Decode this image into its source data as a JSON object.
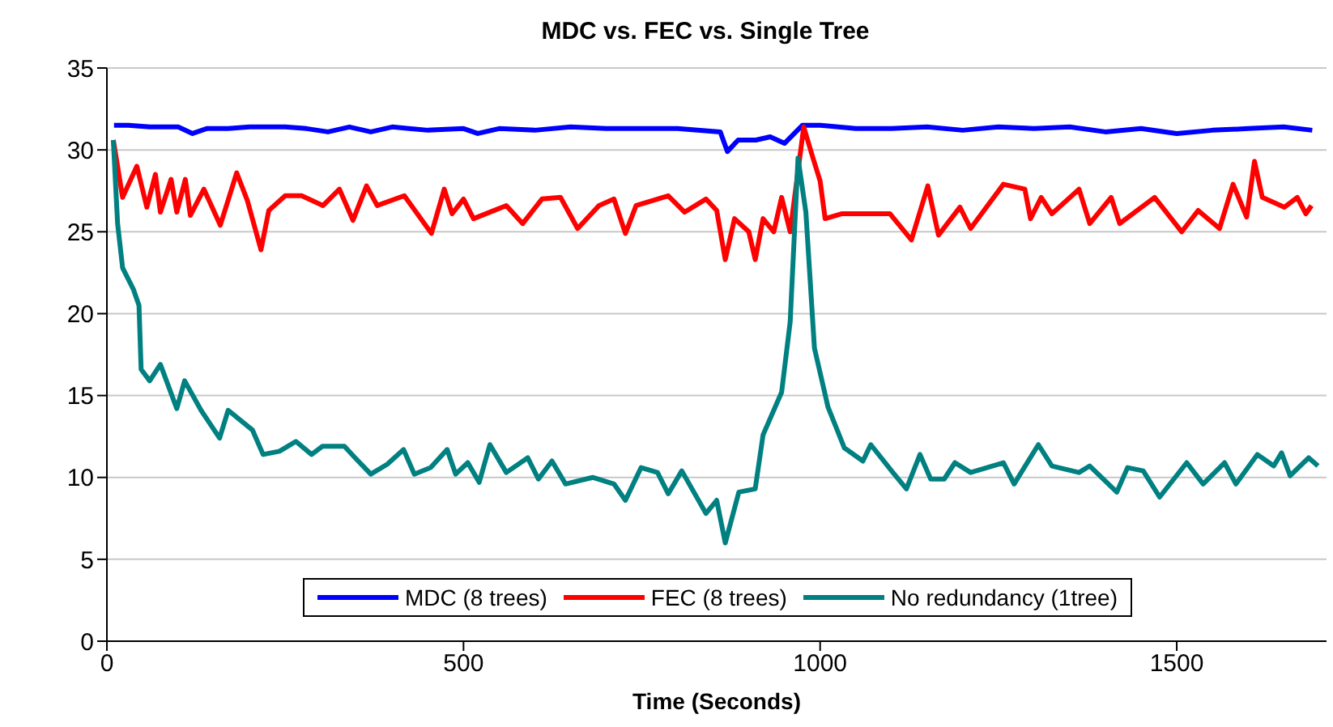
{
  "chart_data": {
    "type": "line",
    "title": "MDC vs. FEC vs. Single Tree",
    "xlabel": "Time (Seconds)",
    "xlim": [
      0,
      1710
    ],
    "xticks": [
      0,
      500,
      1000,
      1500
    ],
    "ylim": [
      0,
      35
    ],
    "yticks": [
      0,
      5,
      10,
      15,
      20,
      25,
      30,
      35
    ],
    "grid": "y",
    "legend": "bottom",
    "series": [
      {
        "name": "MDC (8 trees)",
        "color": "#0000ff",
        "x": [
          10,
          30,
          60,
          100,
          120,
          140,
          170,
          200,
          250,
          280,
          310,
          340,
          370,
          400,
          450,
          500,
          520,
          550,
          600,
          650,
          700,
          750,
          800,
          860,
          870,
          885,
          910,
          930,
          950,
          975,
          1000,
          1050,
          1100,
          1150,
          1200,
          1250,
          1300,
          1350,
          1400,
          1450,
          1500,
          1550,
          1600,
          1650,
          1690
        ],
        "values": [
          31.5,
          31.5,
          31.4,
          31.4,
          31.0,
          31.3,
          31.3,
          31.4,
          31.4,
          31.3,
          31.1,
          31.4,
          31.1,
          31.4,
          31.2,
          31.3,
          31.0,
          31.3,
          31.2,
          31.4,
          31.3,
          31.3,
          31.3,
          31.1,
          29.9,
          30.6,
          30.6,
          30.8,
          30.4,
          31.5,
          31.5,
          31.3,
          31.3,
          31.4,
          31.2,
          31.4,
          31.3,
          31.4,
          31.1,
          31.3,
          31.0,
          31.2,
          31.3,
          31.4,
          31.2
        ]
      },
      {
        "name": "FEC (8 trees)",
        "color": "#ff0000",
        "x": [
          9,
          22,
          42,
          56,
          68,
          75,
          90,
          98,
          110,
          117,
          136,
          159,
          182,
          197,
          216,
          227,
          250,
          273,
          303,
          326,
          345,
          364,
          379,
          417,
          455,
          473,
          484,
          500,
          514,
          560,
          583,
          610,
          636,
          660,
          690,
          711,
          727,
          742,
          787,
          810,
          840,
          855,
          867,
          880,
          900,
          909,
          920,
          935,
          946,
          958,
          977,
          990,
          1000,
          1007,
          1030,
          1075,
          1098,
          1128,
          1151,
          1166,
          1196,
          1211,
          1257,
          1287,
          1295,
          1310,
          1325,
          1363,
          1378,
          1408,
          1420,
          1469,
          1507,
          1530,
          1560,
          1579,
          1598,
          1609,
          1620,
          1651,
          1669,
          1681,
          1689
        ],
        "values": [
          30.6,
          27.1,
          29.0,
          26.5,
          28.5,
          26.2,
          28.2,
          26.2,
          28.2,
          26.0,
          27.6,
          25.4,
          28.6,
          26.9,
          23.9,
          26.3,
          27.2,
          27.2,
          26.6,
          27.6,
          25.7,
          27.8,
          26.6,
          27.2,
          24.9,
          27.6,
          26.1,
          27.0,
          25.8,
          26.6,
          25.5,
          27.0,
          27.1,
          25.2,
          26.6,
          27.0,
          24.9,
          26.6,
          27.2,
          26.2,
          27.0,
          26.3,
          23.3,
          25.8,
          25.0,
          23.3,
          25.8,
          25.0,
          27.1,
          25.0,
          31.4,
          29.5,
          28.1,
          25.8,
          26.1,
          26.1,
          26.1,
          24.5,
          27.8,
          24.8,
          26.5,
          25.2,
          27.9,
          27.6,
          25.8,
          27.1,
          26.1,
          27.6,
          25.5,
          27.1,
          25.5,
          27.1,
          25.0,
          26.3,
          25.2,
          27.9,
          25.9,
          29.3,
          27.1,
          26.5,
          27.1,
          26.1,
          26.6
        ]
      },
      {
        "name": "No redundancy (1tree)",
        "color": "#008080",
        "x": [
          9,
          15,
          22,
          37,
          45,
          48,
          60,
          75,
          98,
          109,
          132,
          158,
          170,
          204,
          219,
          242,
          265,
          287,
          302,
          333,
          348,
          370,
          393,
          416,
          431,
          454,
          477,
          489,
          506,
          522,
          537,
          560,
          590,
          605,
          624,
          643,
          681,
          711,
          727,
          749,
          772,
          787,
          806,
          840,
          855,
          867,
          886,
          909,
          920,
          946,
          958,
          969,
          980,
          992,
          1011,
          1034,
          1060,
          1071,
          1102,
          1121,
          1140,
          1155,
          1174,
          1189,
          1211,
          1257,
          1272,
          1306,
          1325,
          1363,
          1378,
          1416,
          1431,
          1453,
          1476,
          1514,
          1537,
          1567,
          1583,
          1613,
          1636,
          1647,
          1659,
          1685,
          1698
        ],
        "values": [
          30.6,
          25.5,
          22.8,
          21.5,
          20.5,
          16.6,
          15.9,
          16.9,
          14.2,
          15.9,
          14.1,
          12.4,
          14.1,
          12.9,
          11.4,
          11.6,
          12.2,
          11.4,
          11.9,
          11.9,
          11.2,
          10.2,
          10.8,
          11.7,
          10.2,
          10.6,
          11.7,
          10.2,
          10.9,
          9.7,
          12.0,
          10.3,
          11.2,
          9.9,
          11.0,
          9.6,
          10.0,
          9.6,
          8.6,
          10.6,
          10.3,
          9.0,
          10.4,
          7.8,
          8.6,
          6.0,
          9.1,
          9.3,
          12.6,
          15.2,
          19.5,
          29.5,
          26.2,
          17.9,
          14.3,
          11.8,
          11.0,
          12.0,
          10.3,
          9.3,
          11.4,
          9.9,
          9.9,
          10.9,
          10.3,
          10.9,
          9.6,
          12.0,
          10.7,
          10.3,
          10.7,
          9.1,
          10.6,
          10.4,
          8.8,
          10.9,
          9.6,
          10.9,
          9.6,
          11.4,
          10.7,
          11.5,
          10.1,
          11.2,
          10.7
        ]
      }
    ]
  }
}
